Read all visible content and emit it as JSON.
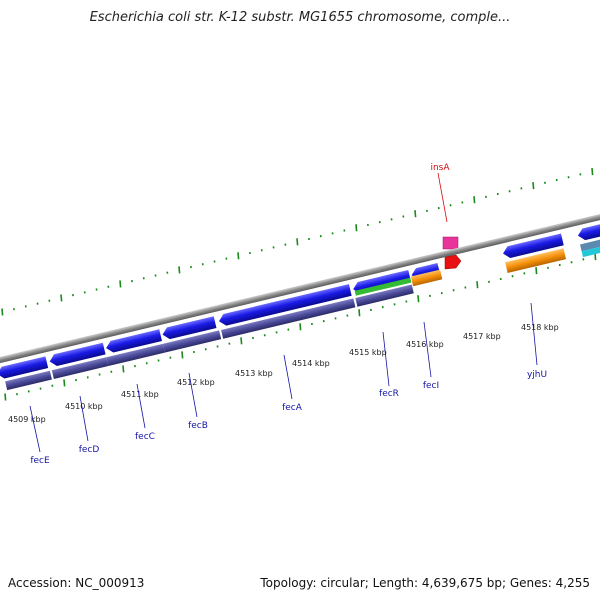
{
  "header": {
    "title": "Escherichia coli str. K-12 substr. MG1655 chromosome, comple..."
  },
  "footer": {
    "accession": "Accession: NC_000913",
    "summary": "Topology: circular; Length: 4,639,675 bp; Genes: 4,255"
  },
  "scale": {
    "labels": [
      "4509 kbp",
      "4510 kbp",
      "4511 kbp",
      "4512 kbp",
      "4513 kbp",
      "4514 kbp",
      "4515 kbp",
      "4516 kbp",
      "4517 kbp",
      "4518 kbp"
    ]
  },
  "genes": {
    "fecE": "fecE",
    "fecD": "fecD",
    "fecC": "fecC",
    "fecB": "fecB",
    "fecA": "fecA",
    "fecR": "fecR",
    "fecI": "fecI",
    "yjhU": "yjhU",
    "insA": "insA"
  },
  "colors": {
    "cds_blue": "#1a1ae6",
    "rna_purple": "#4a4a9a",
    "insA_pink": "#e8339a",
    "insA_red": "#e81010",
    "orange": "#f5900a",
    "green": "#33bb33",
    "cyan": "#22c8d8",
    "tick_green": "#1a8a1a",
    "backbone": "#8a8a8a"
  }
}
